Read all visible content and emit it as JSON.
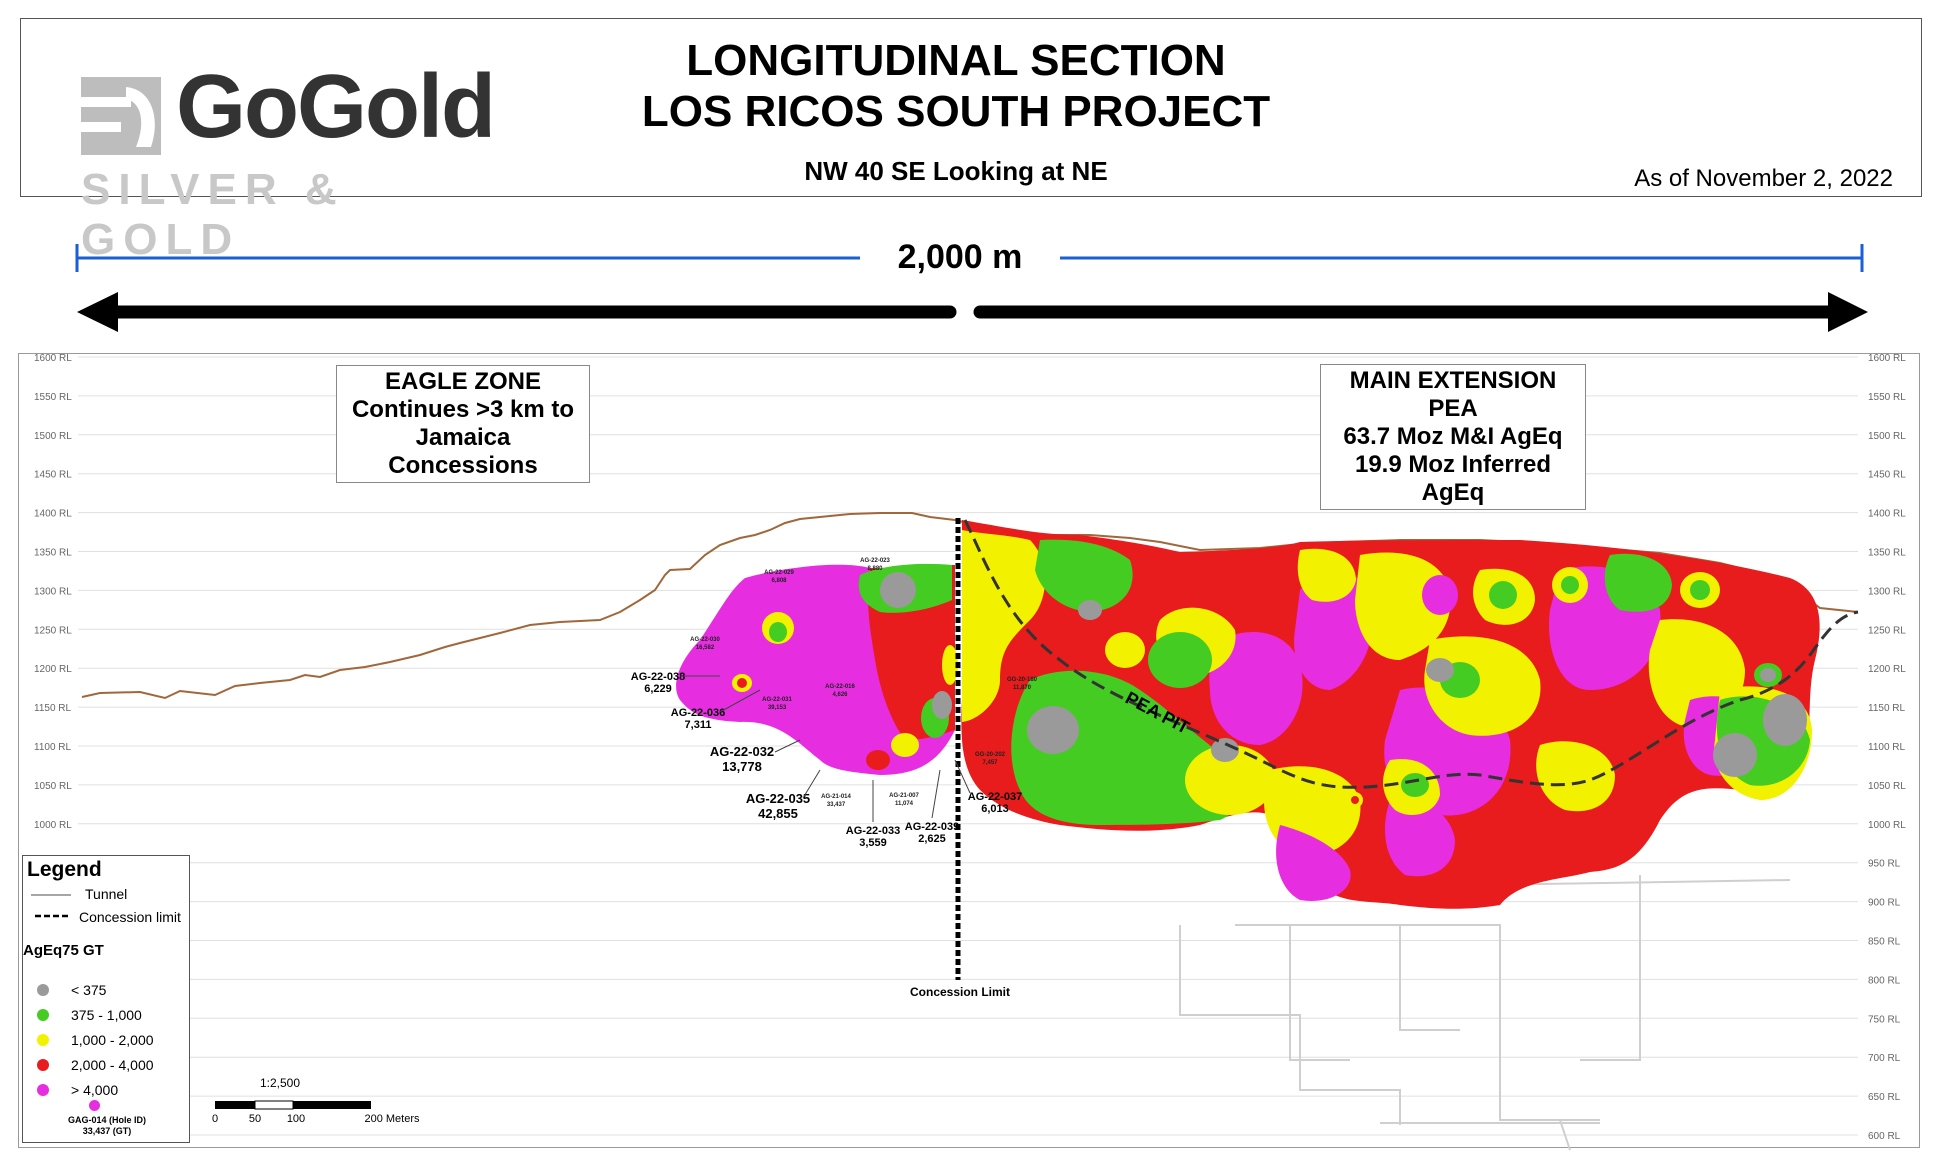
{
  "header": {
    "logo_text": "GoGold",
    "logo_sub": "SILVER & GOLD",
    "title_line1": "LONGITUDINAL SECTION",
    "title_line2": "LOS RICOS SOUTH PROJECT",
    "subtitle": "NW 40 SE Looking at NE",
    "as_of": "As of November 2, 2022"
  },
  "scale_bar_top": {
    "label": "2,000 m",
    "color": "#1a5fd6"
  },
  "callouts": {
    "eagle": [
      "EAGLE ZONE",
      "Continues >3 km to",
      "Jamaica Concessions"
    ],
    "main": [
      "MAIN EXTENSION PEA",
      "63.7 Moz M&I AgEq",
      "19.9 Moz Inferred AgEq"
    ]
  },
  "rl_labels": [
    "1600 RL",
    "1550 RL",
    "1500 RL",
    "1450 RL",
    "1400 RL",
    "1350 RL",
    "1300 RL",
    "1250 RL",
    "1200 RL",
    "1150 RL",
    "1100 RL",
    "1050 RL",
    "1000 RL",
    "950 RL",
    "900 RL",
    "850 RL",
    "800 RL",
    "750 RL",
    "700 RL",
    "650 RL",
    "600 RL"
  ],
  "concession_limit_label": "Concession Limit",
  "pea_pit_label": "PEA PIT",
  "drillholes": [
    {
      "id": "AG-22-038",
      "gt": "6,229"
    },
    {
      "id": "AG-22-036",
      "gt": "7,311"
    },
    {
      "id": "AG-22-032",
      "gt": "13,778"
    },
    {
      "id": "AG-22-035",
      "gt": "42,855"
    },
    {
      "id": "AG-22-033",
      "gt": "3,559"
    },
    {
      "id": "AG-22-039",
      "gt": "2,625"
    },
    {
      "id": "AG-22-037",
      "gt": "6,013"
    }
  ],
  "small_holes": [
    {
      "id": "AG-22-029",
      "gt": "6,808"
    },
    {
      "id": "AG-22-023",
      "gt": "8,880"
    },
    {
      "id": "AG-22-030",
      "gt": "16,582"
    },
    {
      "id": "AG-22-031",
      "gt": "39,153"
    },
    {
      "id": "AG-22-016",
      "gt": "4,626"
    },
    {
      "id": "AG-21-014",
      "gt": "33,437"
    },
    {
      "id": "AG-21-007",
      "gt": "11,074"
    },
    {
      "id": "GG-20-202",
      "gt": "7,457"
    },
    {
      "id": "GG-20-180",
      "gt": "11,870"
    }
  ],
  "legend": {
    "title": "Legend",
    "tunnel": "Tunnel",
    "concession": "Concession limit",
    "grade_title": "AgEq75 GT",
    "classes": [
      {
        "label": "< 375",
        "color": "#9a9a9a"
      },
      {
        "label": "375 - 1,000",
        "color": "#44cc22"
      },
      {
        "label": "1,000 - 2,000",
        "color": "#f2f200"
      },
      {
        "label": "2,000 - 4,000",
        "color": "#e81c1c"
      },
      {
        "label": "> 4,000",
        "color": "#e62ee0"
      }
    ],
    "example_label1": "GAG-014 (Hole ID)",
    "example_label2": "33,437 (GT)"
  },
  "map_scale": {
    "ratio": "1:2,500",
    "ticks": [
      "0",
      "50",
      "100",
      "200 Meters"
    ]
  }
}
